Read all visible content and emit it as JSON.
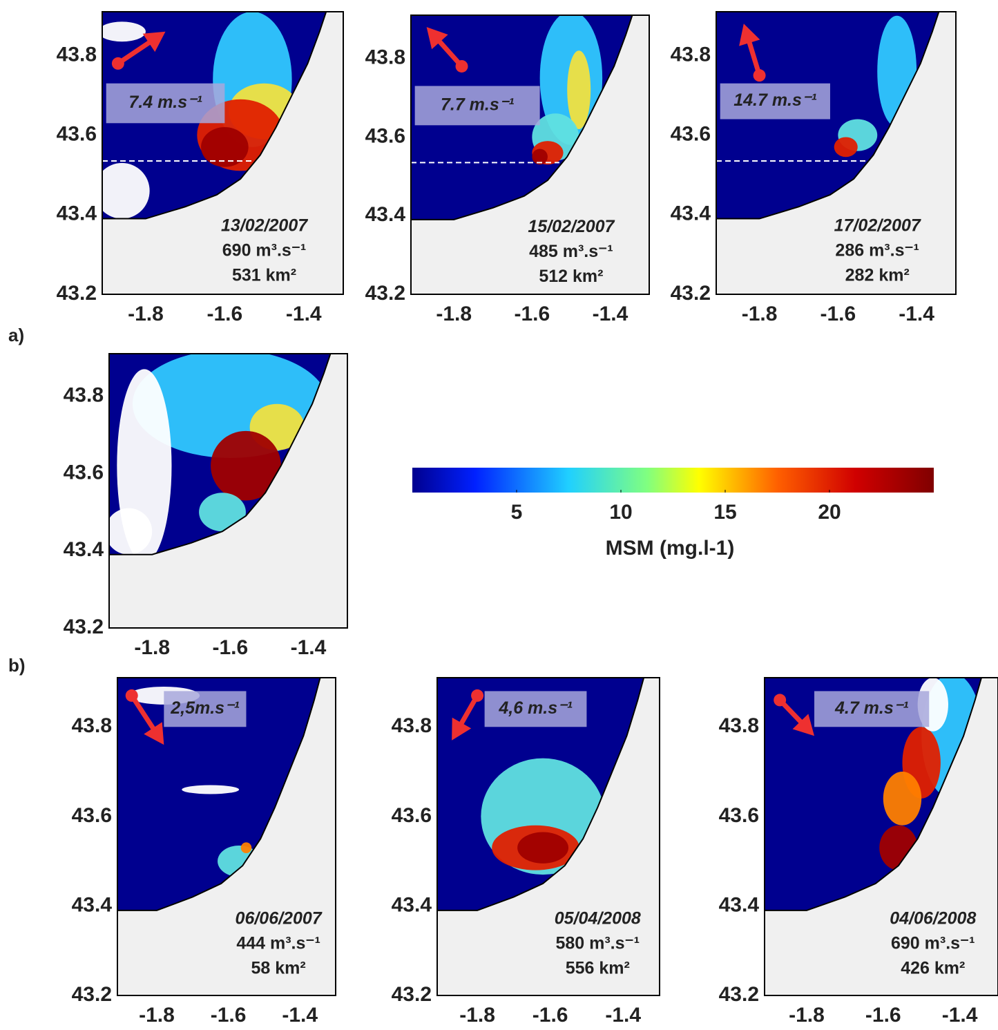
{
  "labels": {
    "a": "a)",
    "b": "b)"
  },
  "axes": {
    "xticks": [
      -1.8,
      -1.6,
      -1.4
    ],
    "yticks": [
      43.2,
      43.4,
      43.6,
      43.8
    ]
  },
  "panels": [
    {
      "wind": "7.4 m.s⁻¹",
      "date": "13/02/2007",
      "discharge": "690 m³.s⁻¹",
      "area": "531 km²"
    },
    {
      "wind": "7.7 m.s⁻¹",
      "date": "15/02/2007",
      "discharge": "485 m³.s⁻¹",
      "area": "512 km²"
    },
    {
      "wind": "14.7 m.s⁻¹",
      "date": "17/02/2007",
      "discharge": "286 m³.s⁻¹",
      "area": "282 km²"
    },
    {
      "wind": "2,5m.s⁻¹",
      "date": "06/06/2007",
      "discharge": "444 m³.s⁻¹",
      "area": "58 km²"
    },
    {
      "wind": "4,6 m.s⁻¹",
      "date": "05/04/2008",
      "discharge": "580 m³.s⁻¹",
      "area": "556 km²"
    },
    {
      "wind": "4.7 m.s⁻¹",
      "date": "04/06/2008",
      "discharge": "690 m³.s⁻¹",
      "area": "426 km²"
    }
  ],
  "colorbar": {
    "range": [
      0,
      25
    ],
    "ticks": [
      5,
      10,
      15,
      20
    ],
    "label": "MSM (mg.l-1)"
  }
}
